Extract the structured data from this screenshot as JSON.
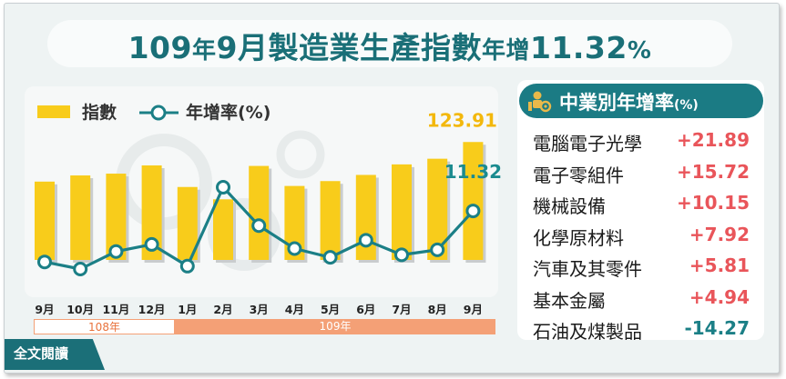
{
  "title": {
    "part1": "109",
    "part2": "年",
    "part3": "9月製造業生產指數",
    "part4": "年增",
    "part5": "11.32",
    "part6": "%"
  },
  "legend": {
    "index_label": "指數",
    "growth_label": "年增率(%)"
  },
  "colors": {
    "bar": "#f8cc1b",
    "bar_shadow": "#c9ccce",
    "line": "#1b7f86",
    "positive": "#e9555a",
    "negative": "#1b7f86"
  },
  "chart_data": {
    "type": "bar+line",
    "categories": [
      "9月",
      "10月",
      "11月",
      "12月",
      "1月",
      "2月",
      "3月",
      "4月",
      "5月",
      "6月",
      "7月",
      "8月",
      "9月"
    ],
    "series": [
      {
        "name": "指數",
        "type": "bar",
        "values": [
          108.5,
          110.9,
          111.6,
          114.8,
          106.4,
          101.6,
          114.6,
          106.8,
          108.7,
          111.1,
          115.2,
          117.4,
          123.91
        ]
      },
      {
        "name": "年增率(%)",
        "type": "line",
        "values": [
          -0.9,
          -2.6,
          1.6,
          3.3,
          -1.9,
          17.0,
          7.8,
          2.3,
          0.2,
          4.3,
          0.8,
          2.0,
          11.32
        ]
      }
    ],
    "labels": {
      "last_bar": "123.91",
      "last_growth": "11.32"
    },
    "year_groups": [
      {
        "label": "108年"
      },
      {
        "label": "109年"
      }
    ]
  },
  "sector_panel": {
    "title": "中業別年增率",
    "unit": "(%)",
    "icon": "factory-worker-gear-icon",
    "rows": [
      {
        "name": "電腦電子光學",
        "value": "+21.89",
        "sign": "positive"
      },
      {
        "name": "電子零組件",
        "value": "+15.72",
        "sign": "positive"
      },
      {
        "name": "機械設備",
        "value": "+10.15",
        "sign": "positive"
      },
      {
        "name": "化學原材料",
        "value": "+7.92",
        "sign": "positive"
      },
      {
        "name": "汽車及其零件",
        "value": "+5.81",
        "sign": "positive"
      },
      {
        "name": "基本金屬",
        "value": "+4.94",
        "sign": "positive"
      },
      {
        "name": "石油及煤製品",
        "value": "-14.27",
        "sign": "negative"
      }
    ]
  },
  "fulltext_button": {
    "label": "全文閱讀"
  }
}
